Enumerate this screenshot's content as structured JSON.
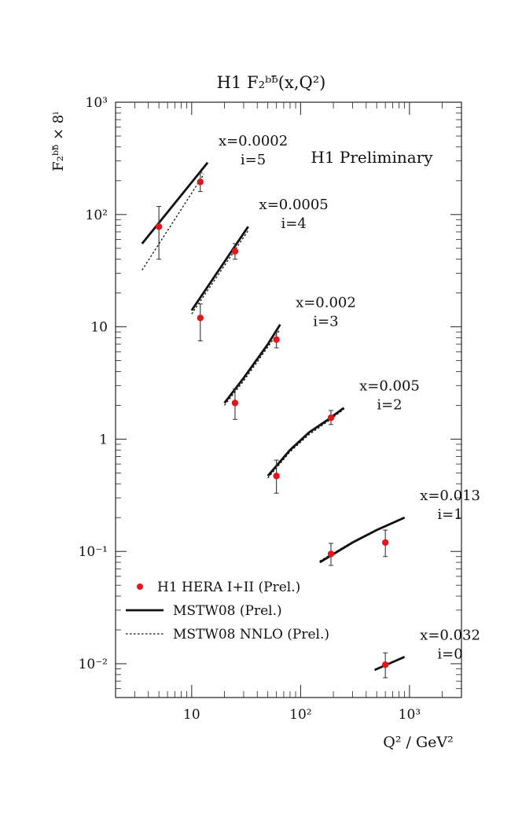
{
  "chart_data": {
    "type": "scatter",
    "title": "H1 F₂ᵇᵇ̄(x,Q²)",
    "annotation": "H1 Preliminary",
    "xlabel": "Q² / GeV²",
    "ylabel": "F₂ᵇᵇ̄ × 8ⁱ",
    "x_scale": "log",
    "y_scale": "log",
    "xlim": [
      2,
      3000
    ],
    "ylim": [
      0.005,
      1000
    ],
    "x_ticks": [
      {
        "value": 10,
        "label": "10"
      },
      {
        "value": 100,
        "label": "10²"
      },
      {
        "value": 1000,
        "label": "10³"
      }
    ],
    "y_ticks": [
      {
        "value": 0.01,
        "label": "10⁻²"
      },
      {
        "value": 0.1,
        "label": "10⁻¹"
      },
      {
        "value": 1,
        "label": "1"
      },
      {
        "value": 10,
        "label": "10"
      },
      {
        "value": 100,
        "label": "10²"
      },
      {
        "value": 1000,
        "label": "10³"
      }
    ],
    "legend": {
      "placement": "bottom-left",
      "entries": [
        {
          "label": "H1 HERA I+II (Prel.)",
          "style": "marker"
        },
        {
          "label": "MSTW08 (Prel.)",
          "style": "solid"
        },
        {
          "label": "MSTW08 NNLO (Prel.)",
          "style": "dotted"
        }
      ]
    },
    "colors": {
      "marker": "#e8141a",
      "line": "#111111",
      "axis": "#222222"
    },
    "groups": [
      {
        "x_label": "x=0.0002",
        "i_label": "i=5",
        "points": [
          {
            "x": 5,
            "y": 78,
            "err_lo": 40,
            "err_hi": 118
          },
          {
            "x": 12,
            "y": 195,
            "err_lo": 160,
            "err_hi": 235
          }
        ],
        "mstw": [
          [
            3.5,
            55
          ],
          [
            14,
            290
          ]
        ],
        "nnlo": [
          [
            3.5,
            32
          ],
          [
            13,
            230
          ]
        ]
      },
      {
        "x_label": "x=0.0005",
        "i_label": "i=4",
        "points": [
          {
            "x": 12,
            "y": 12,
            "err_lo": 7.5,
            "err_hi": 16
          },
          {
            "x": 25,
            "y": 47,
            "err_lo": 40,
            "err_hi": 55
          }
        ],
        "mstw": [
          [
            10,
            14
          ],
          [
            33,
            78
          ]
        ],
        "nnlo": [
          [
            10,
            13
          ],
          [
            33,
            72
          ]
        ]
      },
      {
        "x_label": "x=0.002",
        "i_label": "i=3",
        "points": [
          {
            "x": 25,
            "y": 2.1,
            "err_lo": 1.5,
            "err_hi": 2.8
          },
          {
            "x": 60,
            "y": 7.7,
            "err_lo": 6.5,
            "err_hi": 9
          }
        ],
        "mstw": [
          [
            20,
            2.1
          ],
          [
            30,
            3.5
          ],
          [
            50,
            7.0
          ],
          [
            65,
            10.5
          ]
        ],
        "nnlo": [
          [
            20,
            2.0
          ],
          [
            30,
            3.3
          ],
          [
            50,
            6.6
          ],
          [
            65,
            9.5
          ]
        ]
      },
      {
        "x_label": "x=0.005",
        "i_label": "i=2",
        "points": [
          {
            "x": 60,
            "y": 0.47,
            "err_lo": 0.33,
            "err_hi": 0.65
          },
          {
            "x": 190,
            "y": 1.55,
            "err_lo": 1.35,
            "err_hi": 1.8
          }
        ],
        "mstw": [
          [
            50,
            0.47
          ],
          [
            80,
            0.8
          ],
          [
            120,
            1.15
          ],
          [
            180,
            1.5
          ],
          [
            250,
            1.9
          ]
        ],
        "nnlo": [
          [
            50,
            0.45
          ],
          [
            80,
            0.77
          ],
          [
            120,
            1.1
          ],
          [
            180,
            1.45
          ],
          [
            250,
            1.85
          ]
        ]
      },
      {
        "x_label": "x=0.013",
        "i_label": "i=1",
        "points": [
          {
            "x": 190,
            "y": 0.095,
            "err_lo": 0.075,
            "err_hi": 0.118
          },
          {
            "x": 600,
            "y": 0.12,
            "err_lo": 0.09,
            "err_hi": 0.155
          }
        ],
        "mstw": [
          [
            150,
            0.08
          ],
          [
            300,
            0.12
          ],
          [
            500,
            0.155
          ],
          [
            900,
            0.2
          ]
        ],
        "nnlo": [
          [
            150,
            0.082
          ],
          [
            300,
            0.122
          ],
          [
            500,
            0.157
          ],
          [
            900,
            0.2
          ]
        ]
      },
      {
        "x_label": "x=0.032",
        "i_label": "i=0",
        "points": [
          {
            "x": 600,
            "y": 0.0098,
            "err_lo": 0.0075,
            "err_hi": 0.0125
          }
        ],
        "mstw": [
          [
            480,
            0.0088
          ],
          [
            900,
            0.0115
          ]
        ],
        "nnlo": [
          [
            480,
            0.0087
          ],
          [
            900,
            0.0114
          ]
        ]
      }
    ]
  }
}
